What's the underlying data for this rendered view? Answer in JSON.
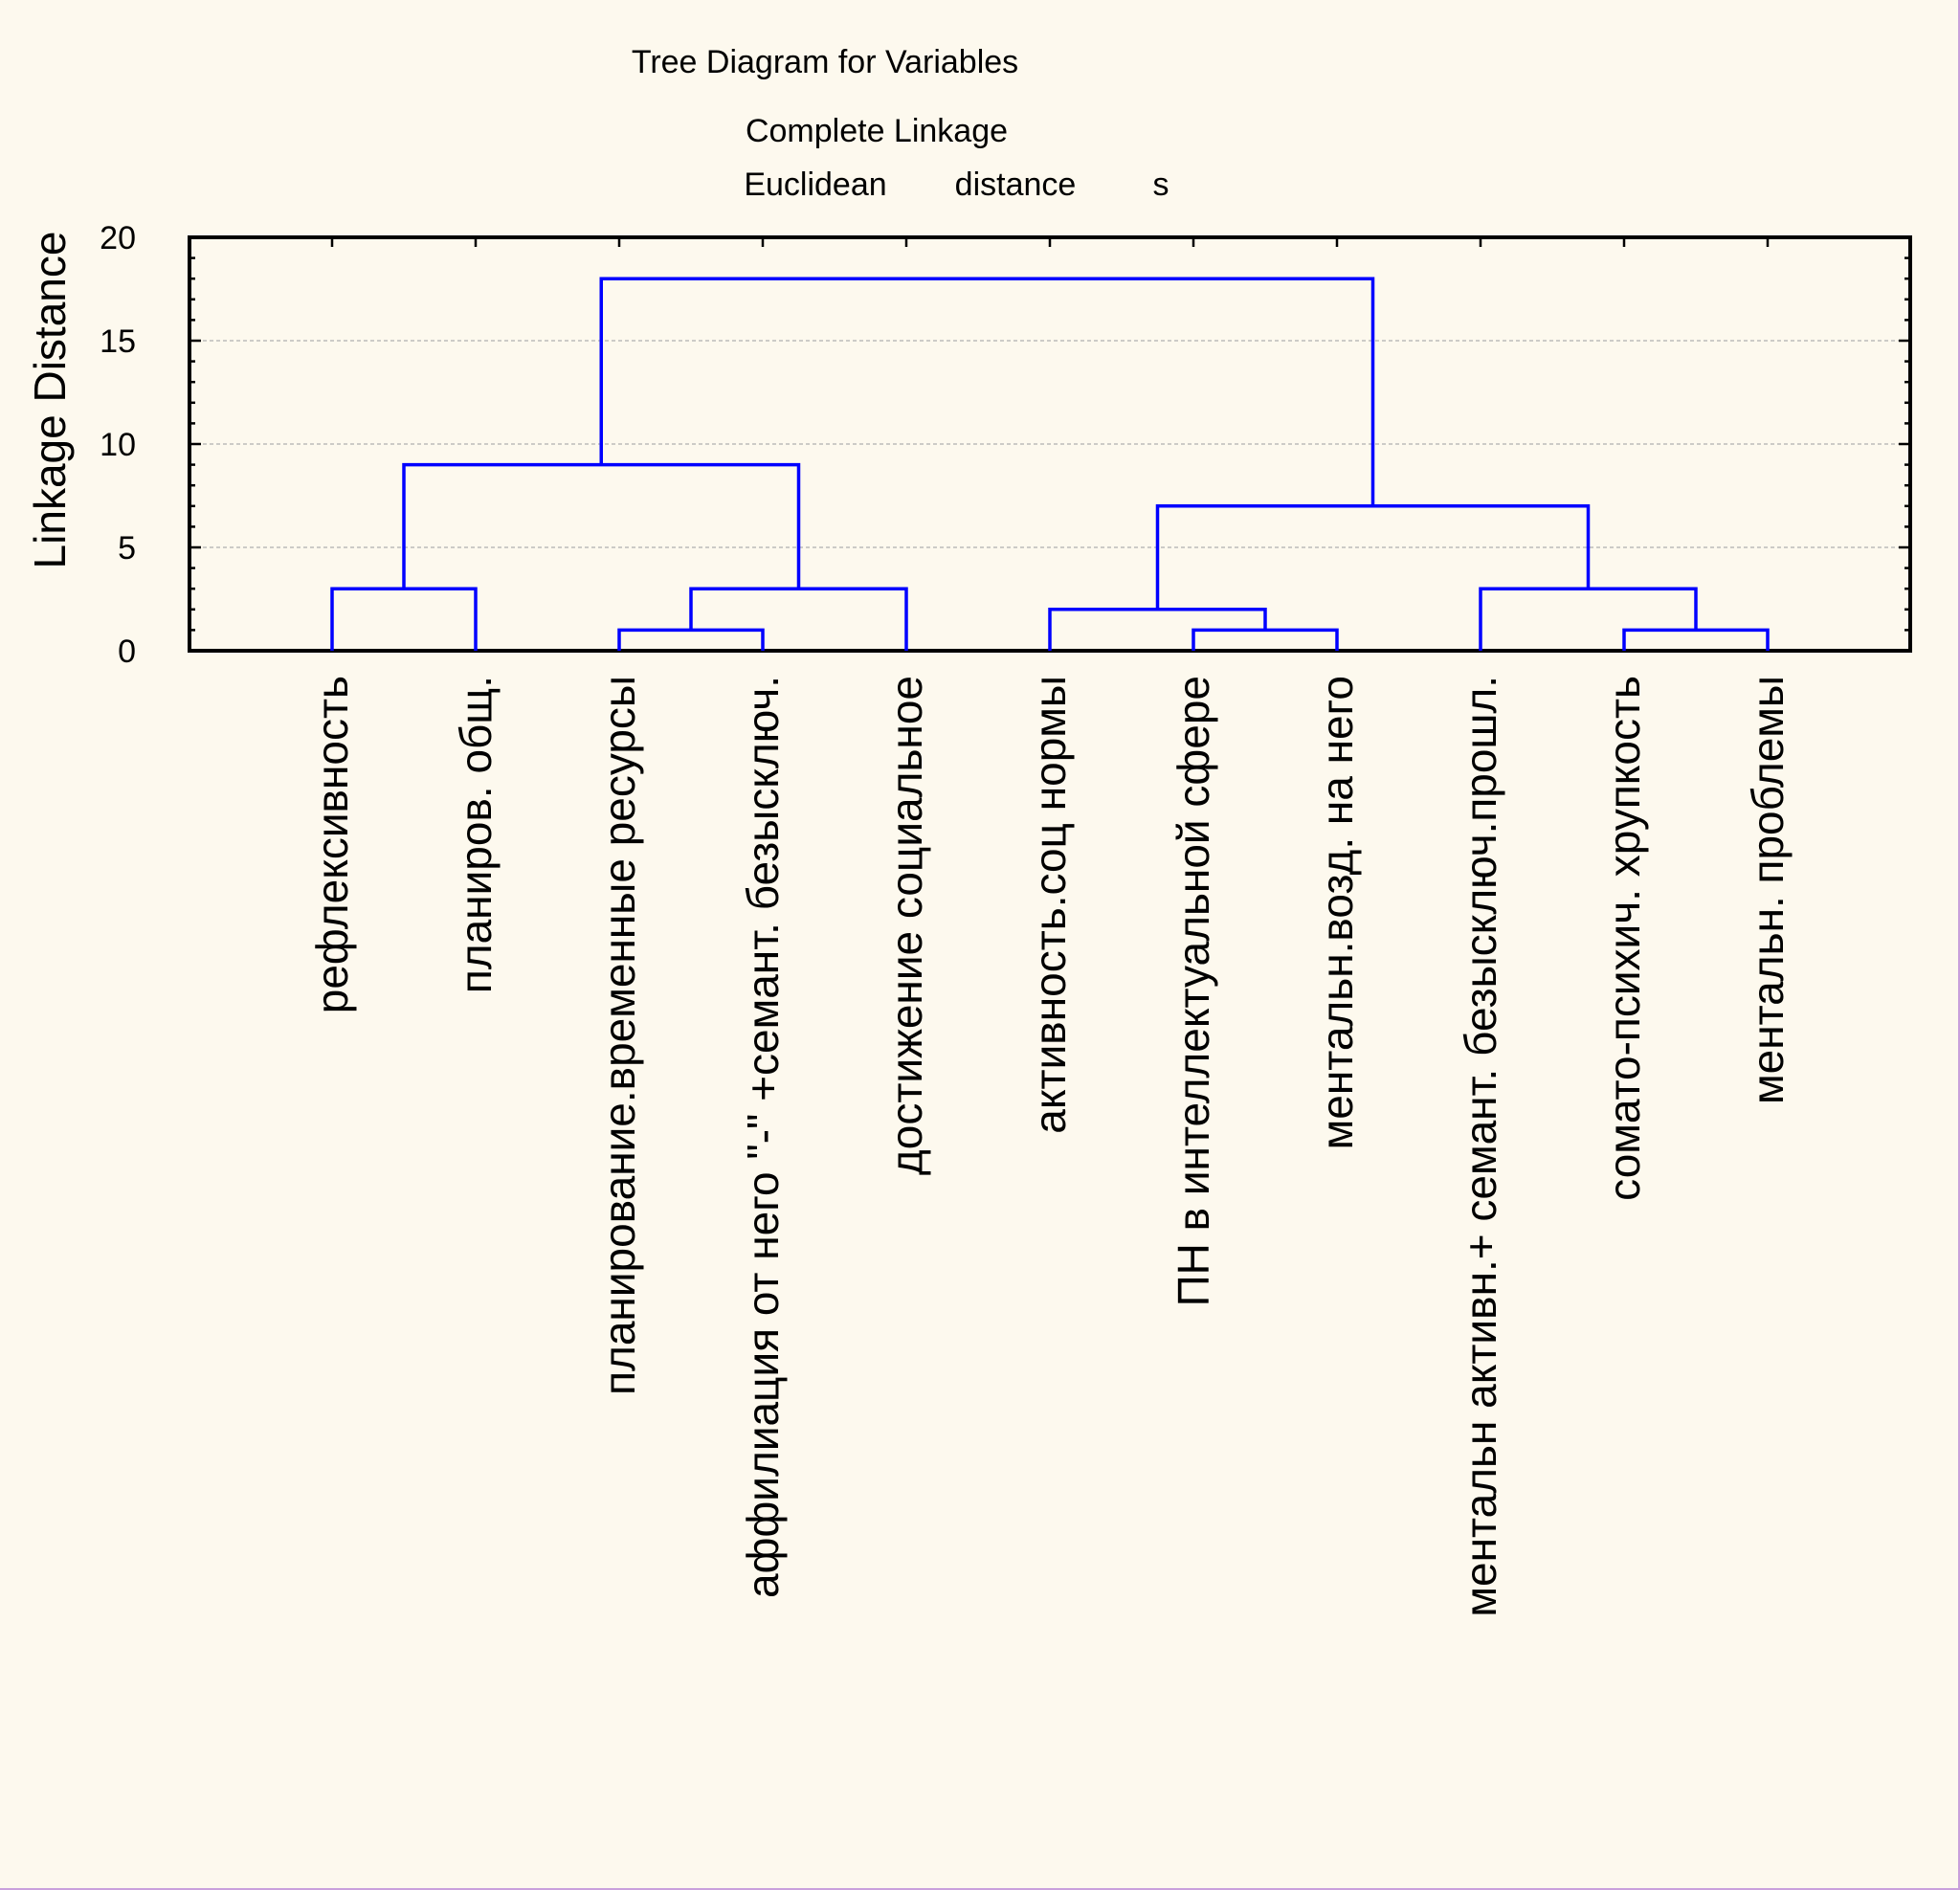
{
  "chart_data": {
    "type": "dendrogram",
    "title": "Tree Diagram for  Variables",
    "subtitle_lines": [
      "Complete Linkage"
    ],
    "distance_words": [
      "Euclidean",
      "distance",
      "s"
    ],
    "ylabel": "Linkage Distance",
    "ylim": [
      0,
      20
    ],
    "yticks": [
      0,
      5,
      10,
      15,
      20
    ],
    "grid": "horizontal dashed",
    "leaves": [
      "рефлексивность",
      "планиров. общ.",
      "планирование.временные ресурсы",
      "аффилиация от него \"-\" +семант. безысключ.",
      "достижение социальное",
      "активность.соц нормы",
      "ПН в интеллектуальной сфере",
      "ментальн.возд. на него",
      "ментальн активн.+ семант. безысключ.прошл.",
      "сомато-психич. хрупкость",
      "ментальн. проблемы"
    ],
    "merges": [
      {
        "left": 0,
        "right": 1,
        "height": 3
      },
      {
        "left": 2,
        "right": 3,
        "height": 1
      },
      {
        "left": "m1",
        "right": 4,
        "height": 3
      },
      {
        "left": "m0",
        "right": "m2",
        "height": 9
      },
      {
        "left": 6,
        "right": 7,
        "height": 1
      },
      {
        "left": 5,
        "right": "m4",
        "height": 2
      },
      {
        "left": 9,
        "right": 10,
        "height": 1
      },
      {
        "left": 8,
        "right": "m6",
        "height": 3
      },
      {
        "left": "m5",
        "right": "m7",
        "height": 7
      },
      {
        "left": "m3",
        "right": "m8",
        "height": 18
      }
    ],
    "line_color": "#0000ff",
    "background": "#fdf9ee",
    "grid_color": "#b0b0b0"
  }
}
